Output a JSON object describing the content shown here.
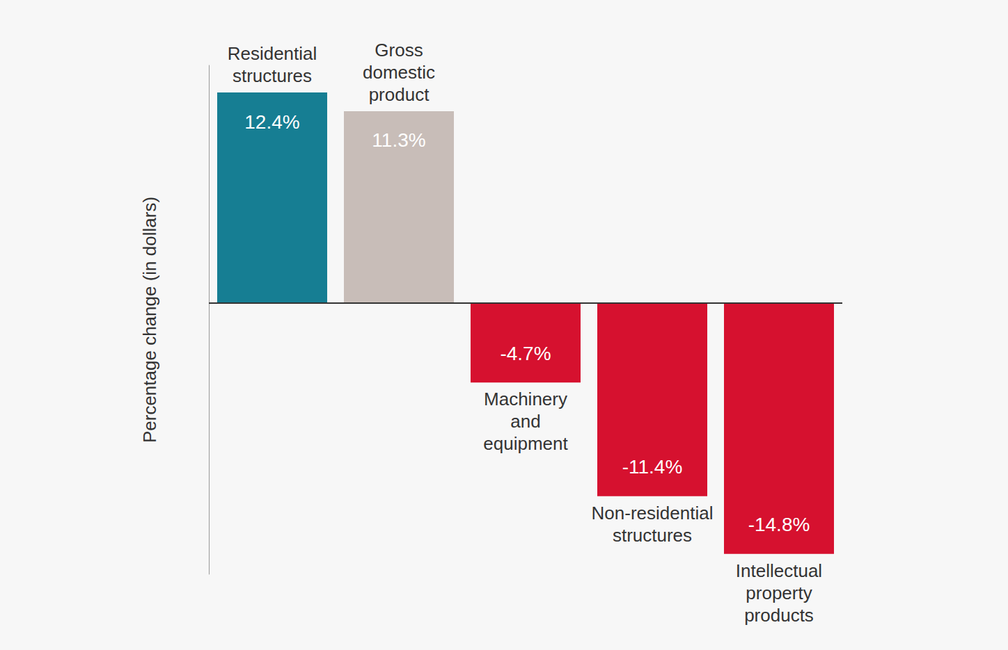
{
  "chart_data": {
    "type": "bar",
    "y_label": "Percentage change (in dollars)",
    "categories": [
      "Residential structures",
      "Gross domestic product",
      "Machinery and equipment",
      "Non-residential structures",
      "Intellectual property products"
    ],
    "values": [
      12.4,
      11.3,
      -4.7,
      -11.4,
      -14.8
    ],
    "value_labels": [
      "12.4%",
      "11.3%",
      "-4.7%",
      "-11.4%",
      "-14.8%"
    ],
    "colors": [
      "#167e93",
      "#c8bdb8",
      "#d6112f",
      "#d6112f",
      "#d6112f"
    ],
    "ylim": [
      -16,
      14
    ],
    "yticks": [
      0
    ],
    "tick_labels": false,
    "grid": false,
    "data_labels": true
  }
}
